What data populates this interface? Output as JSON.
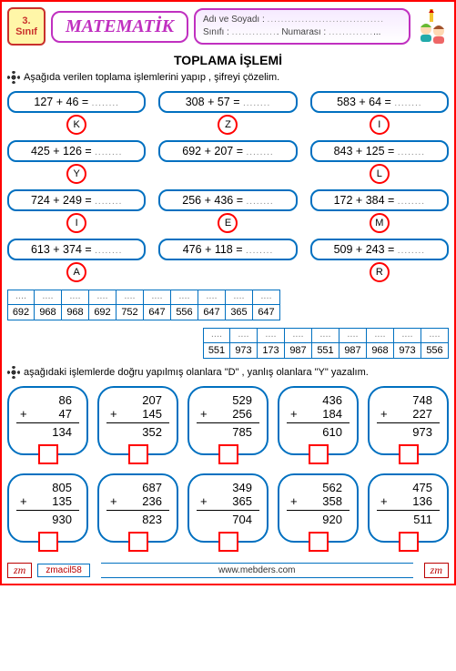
{
  "header": {
    "grade_num": "3.",
    "grade_word": "Sınıf",
    "subject": "MATEMATİK",
    "name_label": "Adı ve Soyadı :",
    "class_label": "Sınıfı :",
    "number_label": "Numarası :"
  },
  "main_title": "TOPLAMA  İŞLEMİ",
  "instruction1": "Aşağıda verilen toplama işlemlerini yapıp , şifreyi çözelim.",
  "instruction2": "aşağıdaki işlemlerde doğru yapılmış olanlara \"D\" , yanlış olanlara \"Y\" yazalım.",
  "problems": [
    [
      {
        "expr": "127 + 46 =",
        "letter": "K"
      },
      {
        "expr": "308 + 57 =",
        "letter": "Z"
      },
      {
        "expr": "583 + 64 =",
        "letter": "I"
      }
    ],
    [
      {
        "expr": "425 + 126 =",
        "letter": "Y"
      },
      {
        "expr": "692 + 207 =",
        "letter": ""
      },
      {
        "expr": "843 + 125 =",
        "letter": "L"
      }
    ],
    [
      {
        "expr": "724 + 249 =",
        "letter": "I"
      },
      {
        "expr": "256 + 436 =",
        "letter": "E"
      },
      {
        "expr": "172 + 384 =",
        "letter": "M"
      }
    ],
    [
      {
        "expr": "613 + 374 =",
        "letter": "A"
      },
      {
        "expr": "476 + 118 =",
        "letter": ""
      },
      {
        "expr": "509 + 243 =",
        "letter": "R"
      }
    ]
  ],
  "cipher1": [
    "692",
    "968",
    "968",
    "692",
    "752",
    "647",
    "556",
    "647",
    "365",
    "647"
  ],
  "cipher2": [
    "551",
    "973",
    "173",
    "987",
    "551",
    "987",
    "968",
    "973",
    "556"
  ],
  "sums": [
    [
      {
        "a": "86",
        "b": "47",
        "r": "134"
      },
      {
        "a": "207",
        "b": "145",
        "r": "352"
      },
      {
        "a": "529",
        "b": "256",
        "r": "785"
      },
      {
        "a": "436",
        "b": "184",
        "r": "610"
      },
      {
        "a": "748",
        "b": "227",
        "r": "973"
      }
    ],
    [
      {
        "a": "805",
        "b": "135",
        "r": "930"
      },
      {
        "a": "687",
        "b": "236",
        "r": "823"
      },
      {
        "a": "349",
        "b": "365",
        "r": "704"
      },
      {
        "a": "562",
        "b": "358",
        "r": "920"
      },
      {
        "a": "475",
        "b": "136",
        "r": "511"
      }
    ]
  ],
  "footer": {
    "tag": "zmacil58",
    "site": "www.mebders.com",
    "sig": "zm"
  },
  "colors": {
    "border_red": "#ff0000",
    "pill_blue": "#0070c0",
    "purple": "#c030c0",
    "badge_bg": "#fff6a8"
  }
}
